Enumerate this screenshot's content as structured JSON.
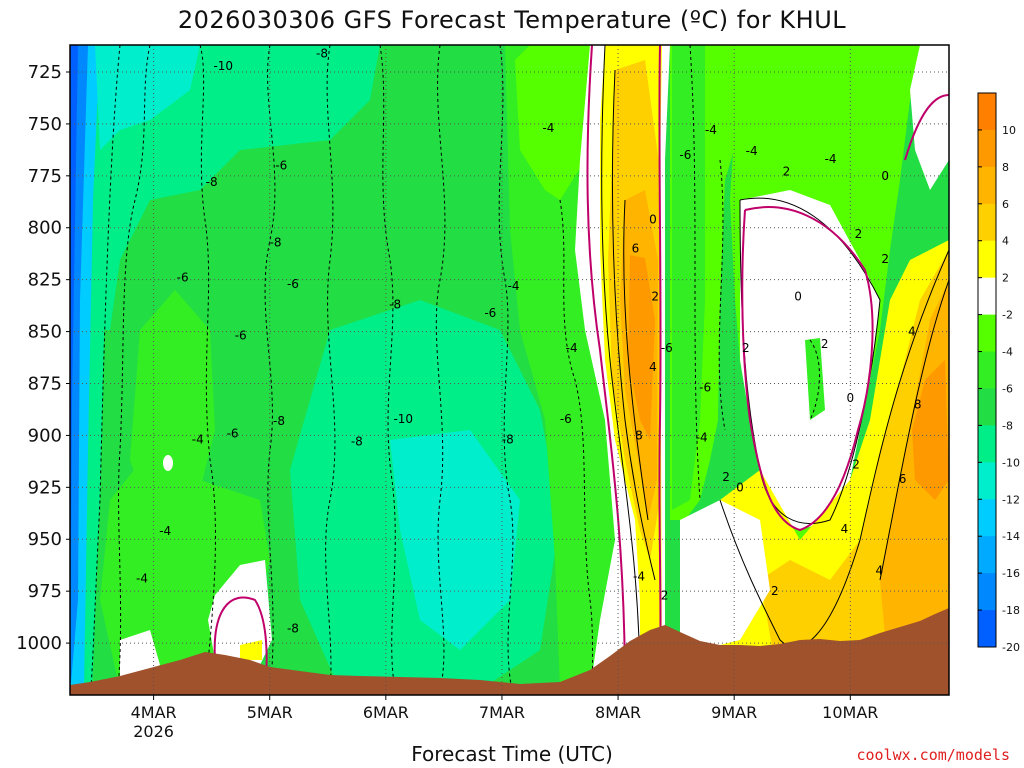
{
  "chart_data": {
    "type": "heatmap",
    "title": "2026030306 GFS Forecast Temperature (ºC) for KHUL",
    "xlabel": "Forecast Time (UTC)",
    "ylabel": "",
    "credit": "coolwx.com/models",
    "y_axis": {
      "unit": "hPa",
      "range": [
        1025,
        712
      ],
      "inverted": true,
      "ticks": [
        "725",
        "750",
        "775",
        "800",
        "825",
        "850",
        "875",
        "900",
        "925",
        "950",
        "975",
        "1000"
      ]
    },
    "x_axis": {
      "ticks": [
        {
          "label": "4MAR",
          "sub": "2026"
        },
        {
          "label": "5MAR",
          "sub": ""
        },
        {
          "label": "6MAR",
          "sub": ""
        },
        {
          "label": "7MAR",
          "sub": ""
        },
        {
          "label": "8MAR",
          "sub": ""
        },
        {
          "label": "9MAR",
          "sub": ""
        },
        {
          "label": "10MAR",
          "sub": ""
        }
      ]
    },
    "grid": true,
    "colorbar": {
      "placement": "right",
      "labels": [
        "10",
        "8",
        "6",
        "4",
        "2",
        "-2",
        "-4",
        "-6",
        "-8",
        "-10",
        "-12",
        "-14",
        "-16",
        "-18",
        "-20"
      ],
      "bins": [
        {
          "color": "#ff8000"
        },
        {
          "color": "#ff9900"
        },
        {
          "color": "#ffb400"
        },
        {
          "color": "#ffd000"
        },
        {
          "color": "#ffff00"
        },
        {
          "color": "#ffffff"
        },
        {
          "color": "#55ff00"
        },
        {
          "color": "#33ee22"
        },
        {
          "color": "#22dd44"
        },
        {
          "color": "#00ee88"
        },
        {
          "color": "#00eecc"
        },
        {
          "color": "#00ccff"
        },
        {
          "color": "#00aaff"
        },
        {
          "color": "#0088ff"
        },
        {
          "color": "#0060ff"
        }
      ]
    },
    "contour_labels": [
      {
        "t": 0.6,
        "p": 722,
        "v": "-10"
      },
      {
        "t": 1.45,
        "p": 716,
        "v": "-8"
      },
      {
        "t": 0.5,
        "p": 778,
        "v": "-8"
      },
      {
        "t": 1.1,
        "p": 770,
        "v": "-6"
      },
      {
        "t": 1.05,
        "p": 807,
        "v": "-8"
      },
      {
        "t": 1.2,
        "p": 827,
        "v": "-6"
      },
      {
        "t": 0.25,
        "p": 824,
        "v": "-6"
      },
      {
        "t": 0.75,
        "p": 852,
        "v": "-6"
      },
      {
        "t": 1.08,
        "p": 893,
        "v": "-8"
      },
      {
        "t": 0.68,
        "p": 899,
        "v": "-6"
      },
      {
        "t": 0.38,
        "p": 902,
        "v": "-4"
      },
      {
        "t": 0.1,
        "p": 946,
        "v": "-4"
      },
      {
        "t": -0.1,
        "p": 969,
        "v": "-4"
      },
      {
        "t": 1.2,
        "p": 993,
        "v": "-8"
      },
      {
        "t": 1.75,
        "p": 903,
        "v": "-8"
      },
      {
        "t": 2.15,
        "p": 892,
        "v": "-10"
      },
      {
        "t": 2.08,
        "p": 837,
        "v": "-8"
      },
      {
        "t": 2.9,
        "p": 841,
        "v": "-6"
      },
      {
        "t": 3.1,
        "p": 828,
        "v": "-4"
      },
      {
        "t": 3.55,
        "p": 892,
        "v": "-6"
      },
      {
        "t": 3.05,
        "p": 902,
        "v": "-8"
      },
      {
        "t": 3.4,
        "p": 752,
        "v": "-4"
      },
      {
        "t": 3.6,
        "p": 858,
        "v": "-4"
      },
      {
        "t": 4.15,
        "p": 810,
        "v": "6"
      },
      {
        "t": 4.3,
        "p": 796,
        "v": "0"
      },
      {
        "t": 4.32,
        "p": 833,
        "v": "2"
      },
      {
        "t": 4.3,
        "p": 867,
        "v": "4"
      },
      {
        "t": 4.18,
        "p": 900,
        "v": "8"
      },
      {
        "t": 4.42,
        "p": 858,
        "v": "-6"
      },
      {
        "t": 4.58,
        "p": 765,
        "v": "-6"
      },
      {
        "t": 4.8,
        "p": 753,
        "v": "-4"
      },
      {
        "t": 4.75,
        "p": 877,
        "v": "-6"
      },
      {
        "t": 4.72,
        "p": 901,
        "v": "-4"
      },
      {
        "t": 5.15,
        "p": 763,
        "v": "-4"
      },
      {
        "t": 5.45,
        "p": 773,
        "v": "2"
      },
      {
        "t": 5.55,
        "p": 833,
        "v": "0"
      },
      {
        "t": 5.1,
        "p": 858,
        "v": "2"
      },
      {
        "t": 5.78,
        "p": 856,
        "v": "2"
      },
      {
        "t": 6.0,
        "p": 882,
        "v": "0"
      },
      {
        "t": 6.05,
        "p": 914,
        "v": "2"
      },
      {
        "t": 5.83,
        "p": 767,
        "v": "-4"
      },
      {
        "t": 6.3,
        "p": 775,
        "v": "0"
      },
      {
        "t": 6.07,
        "p": 803,
        "v": "2"
      },
      {
        "t": 6.3,
        "p": 815,
        "v": "2"
      },
      {
        "t": 6.53,
        "p": 850,
        "v": "4"
      },
      {
        "t": 6.58,
        "p": 885,
        "v": "8"
      },
      {
        "t": 6.45,
        "p": 921,
        "v": "6"
      },
      {
        "t": 5.05,
        "p": 925,
        "v": "0"
      },
      {
        "t": 4.93,
        "p": 920,
        "v": "2"
      },
      {
        "t": 5.35,
        "p": 975,
        "v": "2"
      },
      {
        "t": 5.95,
        "p": 945,
        "v": "4"
      },
      {
        "t": 6.25,
        "p": 965,
        "v": "4"
      },
      {
        "t": 4.4,
        "p": 977,
        "v": "2"
      },
      {
        "t": 4.18,
        "p": 968,
        "v": "-4"
      }
    ]
  }
}
